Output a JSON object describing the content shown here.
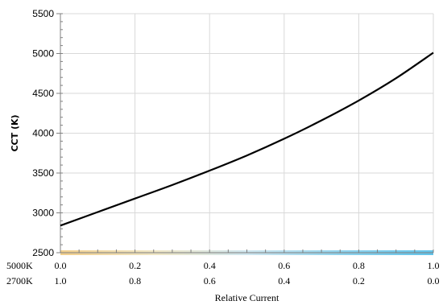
{
  "chart_data": {
    "type": "line",
    "xlabel": "Relative Current",
    "ylabel": "CCT (K)",
    "xlim": [
      0,
      1
    ],
    "ylim": [
      2500,
      5500
    ],
    "y_ticks": [
      2500,
      3000,
      3500,
      4000,
      4500,
      5000,
      5500
    ],
    "grid": true,
    "x_axis_rows": [
      {
        "label": "5000K",
        "ticks": [
          "0.0",
          "0.2",
          "0.4",
          "0.6",
          "0.8",
          "1.0"
        ]
      },
      {
        "label": "2700K",
        "ticks": [
          "1.0",
          "0.8",
          "0.6",
          "0.4",
          "0.2",
          "0.0"
        ]
      }
    ],
    "series": [
      {
        "color": "#000000",
        "x": [
          0.0,
          0.1,
          0.2,
          0.3,
          0.4,
          0.5,
          0.6,
          0.7,
          0.8,
          0.9,
          1.0
        ],
        "y": [
          2840,
          3010,
          3180,
          3350,
          3530,
          3720,
          3930,
          4160,
          4410,
          4690,
          5010
        ]
      }
    ],
    "color_bar": {
      "colors": [
        "#f2cf8c",
        "#f0e6c4",
        "#cfe6ef",
        "#8fd2ec",
        "#62c4ea"
      ]
    }
  }
}
